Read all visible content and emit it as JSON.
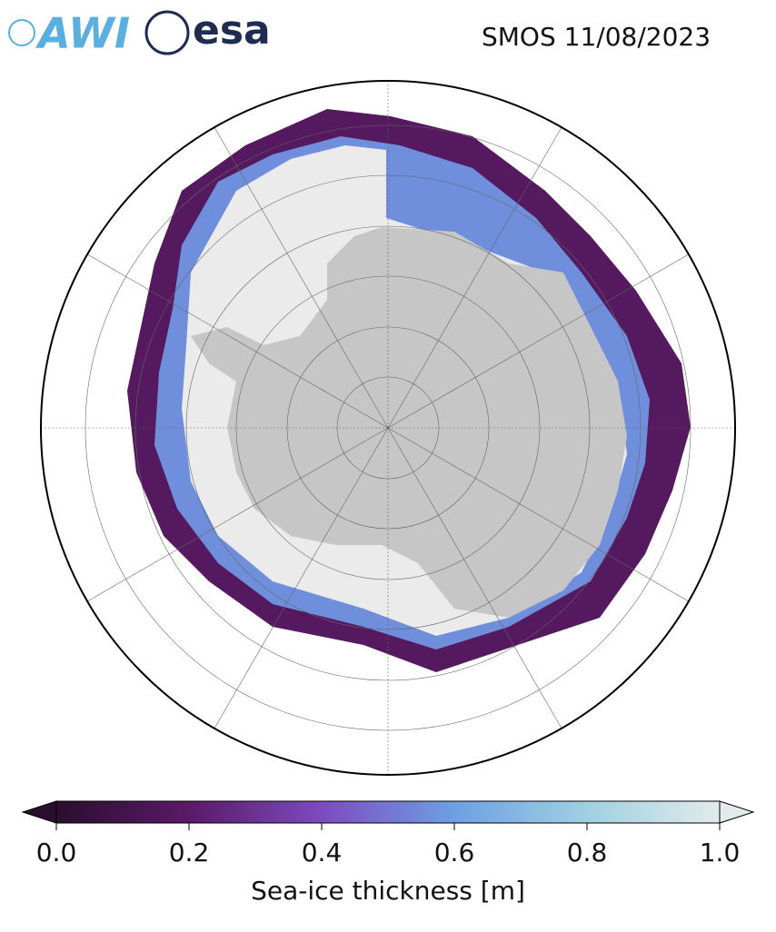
{
  "header": {
    "logos": [
      "AWI",
      "esa"
    ],
    "title": "SMOS 11/08/2023"
  },
  "colorbar": {
    "label": "Sea-ice thickness [m]",
    "lim": [
      0,
      1
    ],
    "ticks": [
      {
        "value": 0,
        "label": "0.0"
      },
      {
        "value": 0.2,
        "label": "0.2"
      },
      {
        "value": 0.4,
        "label": "0.4"
      },
      {
        "value": 0.6,
        "label": "0.6"
      },
      {
        "value": 0.8,
        "label": "0.8"
      },
      {
        "value": 1,
        "label": "1.0"
      }
    ],
    "colors": [
      "#2a0e2e",
      "#5a1a66",
      "#7d4bbf",
      "#6e9fe3",
      "#9fd0e2",
      "#e2ebea"
    ]
  }
}
